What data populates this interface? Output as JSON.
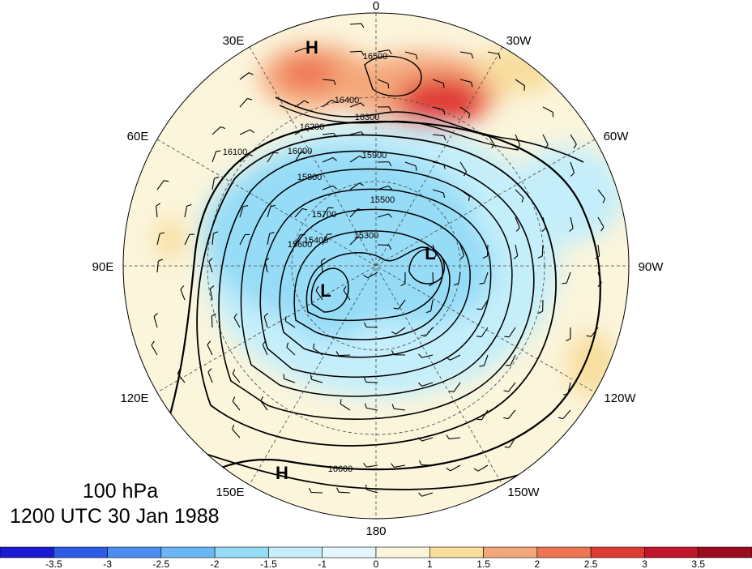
{
  "map": {
    "level": "100 hPa",
    "time": "1200 UTC 30 Jan 1988",
    "longitude_labels": [
      "0",
      "30W",
      "60W",
      "90W",
      "120W",
      "150W",
      "180",
      "150E",
      "120E",
      "90E",
      "60E",
      "30E"
    ],
    "contour_labels": [
      "16500",
      "16400",
      "16300",
      "16200",
      "16100",
      "16000",
      "15900",
      "15800",
      "15700",
      "15600",
      "15500",
      "15400",
      "15300",
      "16600"
    ],
    "centers": [
      {
        "type": "H",
        "label": "H"
      },
      {
        "type": "H",
        "label": "H"
      },
      {
        "type": "L",
        "label": "L"
      },
      {
        "type": "L",
        "label": "L"
      }
    ]
  },
  "colorbar": {
    "tick_labels": [
      "-3.5",
      "-3",
      "-2.5",
      "-2",
      "-1.5",
      "-1",
      "0",
      "1",
      "1.5",
      "2",
      "2.5",
      "3",
      "3.5"
    ],
    "colors": [
      "#1a1ad2",
      "#2e5be6",
      "#4a8ef0",
      "#6ab6f5",
      "#96dcf7",
      "#c4eefa",
      "#e6f7fb",
      "#fbf5dc",
      "#f8dd9c",
      "#f4a77a",
      "#ee7452",
      "#e03a34",
      "#c0152a",
      "#9a0b1e"
    ]
  }
}
